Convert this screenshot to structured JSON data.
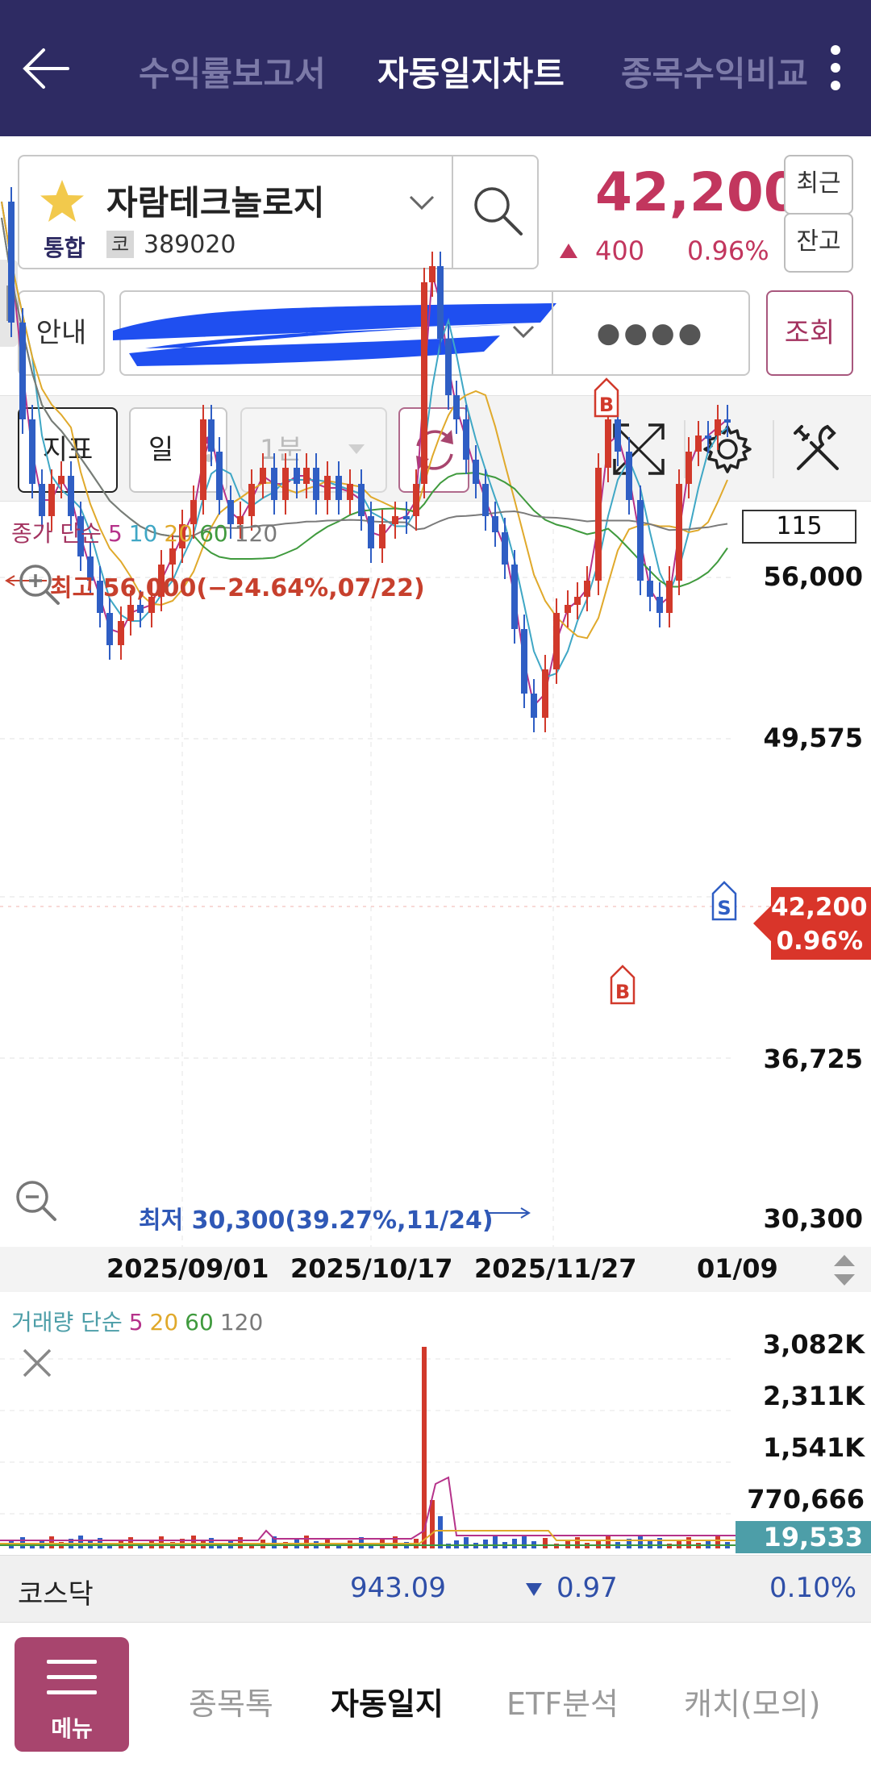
{
  "header": {
    "tabs": [
      {
        "label": "수익률보고서",
        "active": false
      },
      {
        "label": "자동일지차트",
        "active": true
      },
      {
        "label": "종목수익비교",
        "active": false
      }
    ]
  },
  "stock": {
    "name": "자람테크놀로지",
    "market": "통합",
    "code_type": "코",
    "code": "389020",
    "price": "42,200",
    "change": "400",
    "change_rate": "0.96%",
    "recent_label": "최근",
    "balance_label": "잔고"
  },
  "account": {
    "info_label": "안내",
    "password_mask": "●●●●",
    "lookup_label": "조회"
  },
  "toolbar": {
    "indicator_label": "지표",
    "period_label": "일",
    "minute_label": "1분"
  },
  "price_chart": {
    "legend": {
      "label": "종가 단순",
      "periods": [
        {
          "p": "5",
          "color": "#b5328a"
        },
        {
          "p": "10",
          "color": "#3fa7c5"
        },
        {
          "p": "20",
          "color": "#e0a92b"
        },
        {
          "p": "60",
          "color": "#3f9a3d"
        },
        {
          "p": "120",
          "color": "#7a7a7a"
        }
      ]
    },
    "visible_count": "115",
    "high_label": "최고 56,000(−24.64%,07/22)",
    "low_label": "최저 30,300(39.27%,11/24)",
    "price_ticks": [
      "56,000",
      "49,575",
      "36,725",
      "30,300"
    ],
    "current_price": "42,200",
    "current_rate": "0.96%",
    "dates": [
      "2025/09/01",
      "2025/10/17",
      "2025/11/27",
      "01/09"
    ],
    "signals": [
      "B",
      "B",
      "S"
    ]
  },
  "volume_chart": {
    "legend": {
      "label": "거래량 단순",
      "periods": [
        {
          "p": "5",
          "color": "#b5328a"
        },
        {
          "p": "20",
          "color": "#e0a92b"
        },
        {
          "p": "60",
          "color": "#3f9a3d"
        },
        {
          "p": "120",
          "color": "#7a7a7a"
        }
      ]
    },
    "ticks": [
      "3,082K",
      "2,311K",
      "1,541K",
      "770,666"
    ],
    "current_volume": "19,533"
  },
  "index_bar": {
    "name": "코스닥",
    "value": "943.09",
    "change": "0.97",
    "rate": "0.10%"
  },
  "bottom_nav": {
    "menu_label": "메뉴",
    "items": [
      {
        "label": "종목톡",
        "active": false
      },
      {
        "label": "자동일지",
        "active": true
      },
      {
        "label": "ETF분석",
        "active": false
      },
      {
        "label": "캐치(모의)",
        "active": false
      }
    ]
  },
  "colors": {
    "header_bg": "#2e2b63",
    "up": "#c2365e",
    "down": "#2f4fa8",
    "candle_up": "#d1392b",
    "candle_down": "#2f5ec4",
    "accent": "#a8456e"
  }
}
